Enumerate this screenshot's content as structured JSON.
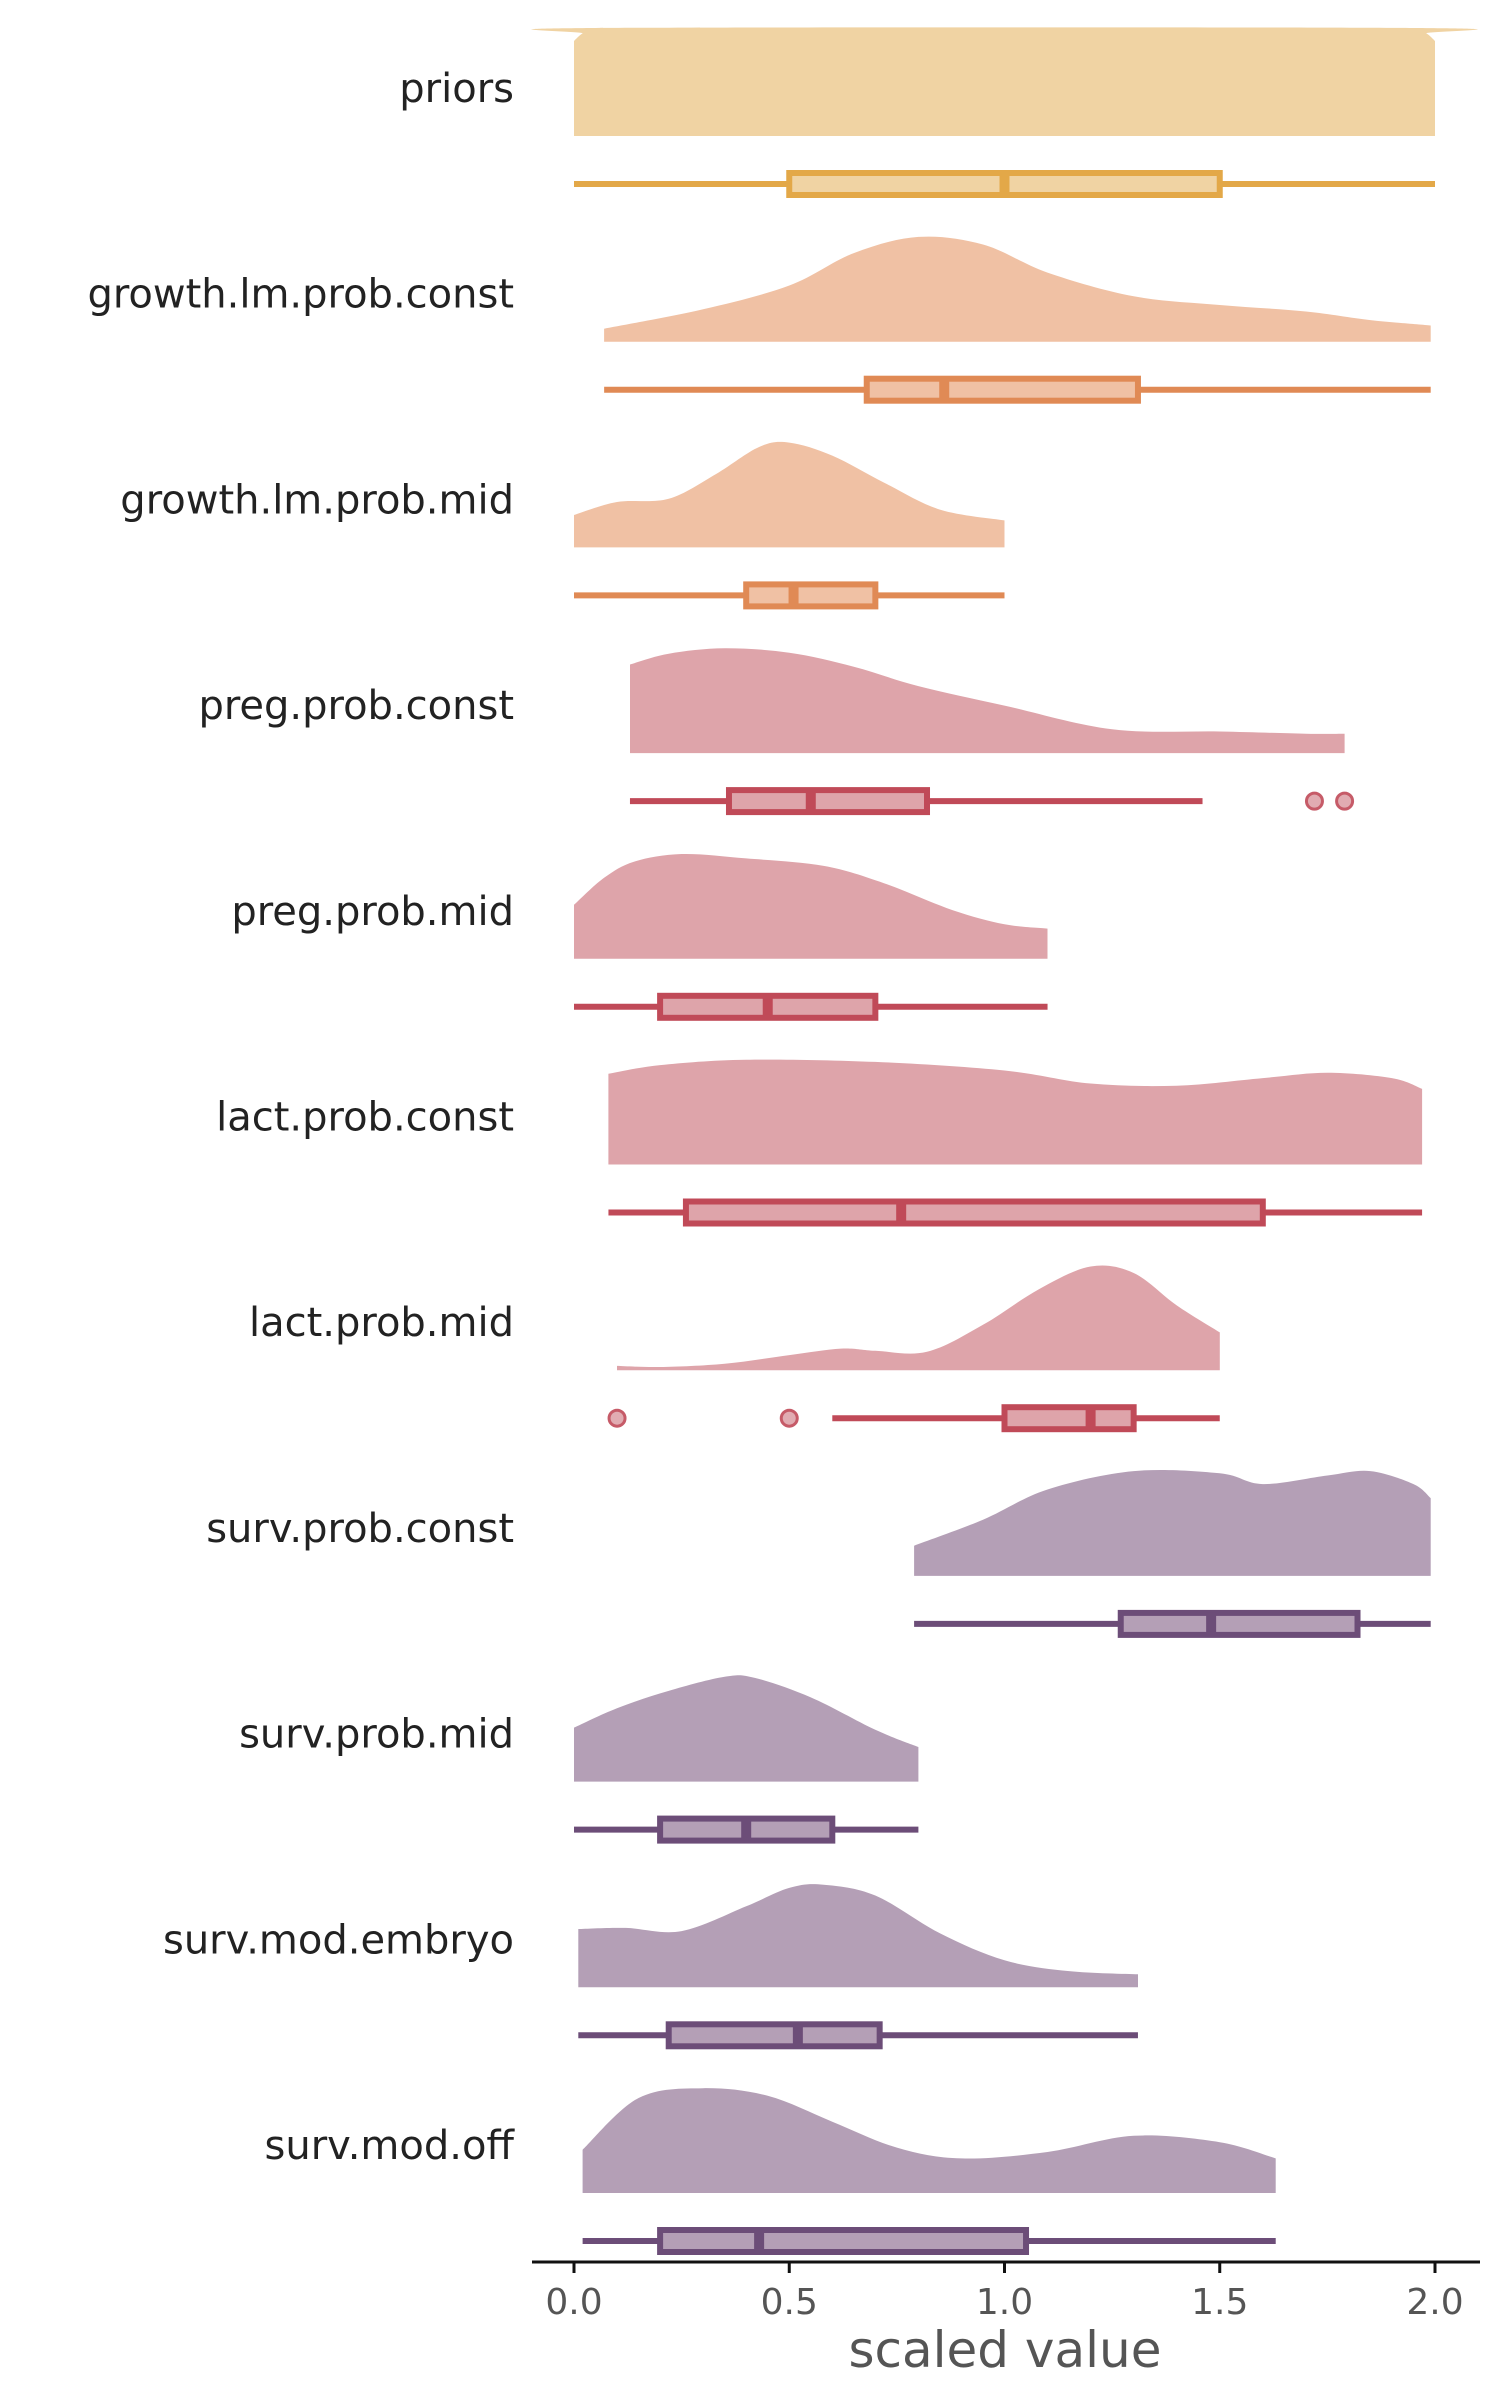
{
  "chart_data": {
    "type": "raincloud",
    "title": "",
    "xlabel": "scaled value",
    "xlim": [
      -0.1,
      2.1
    ],
    "xticks": [
      0.0,
      0.5,
      1.0,
      1.5,
      2.0
    ],
    "xtick_labels": [
      "0.0",
      "0.5",
      "1.0",
      "1.5",
      "2.0"
    ],
    "grid": false,
    "legend": "none",
    "series": [
      {
        "name": "priors",
        "group": "prior",
        "fill": "#F0D3A3",
        "line": "#E3A848",
        "box": {
          "min": 0.0,
          "q1": 0.5,
          "median": 1.0,
          "q3": 1.5,
          "max": 2.0
        },
        "outliers": [],
        "density": [
          [
            0.0,
            0.88
          ],
          [
            0.02,
            0.95
          ],
          [
            0.05,
            1.0
          ],
          [
            1.95,
            1.0
          ],
          [
            1.98,
            0.95
          ],
          [
            2.0,
            0.88
          ]
        ]
      },
      {
        "name": "growth.lm.prob.const",
        "group": "growth",
        "fill": "#F0C1A4",
        "line": "#E08A55",
        "box": {
          "min": 0.07,
          "q1": 0.68,
          "median": 0.86,
          "q3": 1.31,
          "max": 1.99
        },
        "outliers": [],
        "density": [
          [
            0.07,
            0.12
          ],
          [
            0.3,
            0.3
          ],
          [
            0.5,
            0.52
          ],
          [
            0.65,
            0.82
          ],
          [
            0.8,
            0.97
          ],
          [
            0.95,
            0.9
          ],
          [
            1.1,
            0.64
          ],
          [
            1.3,
            0.42
          ],
          [
            1.5,
            0.34
          ],
          [
            1.7,
            0.28
          ],
          [
            1.85,
            0.2
          ],
          [
            1.99,
            0.15
          ]
        ]
      },
      {
        "name": "growth.lm.prob.mid",
        "group": "growth",
        "fill": "#F0C1A4",
        "line": "#E08A55",
        "box": {
          "min": 0.0,
          "q1": 0.4,
          "median": 0.51,
          "q3": 0.7,
          "max": 1.0
        },
        "outliers": [],
        "density": [
          [
            0.0,
            0.3
          ],
          [
            0.1,
            0.42
          ],
          [
            0.22,
            0.45
          ],
          [
            0.33,
            0.68
          ],
          [
            0.43,
            0.93
          ],
          [
            0.5,
            0.97
          ],
          [
            0.6,
            0.85
          ],
          [
            0.72,
            0.6
          ],
          [
            0.85,
            0.35
          ],
          [
            1.0,
            0.25
          ]
        ]
      },
      {
        "name": "preg.prob.const",
        "group": "reproduction",
        "fill": "#DEA4AA",
        "line": "#C04A58",
        "box": {
          "min": 0.13,
          "q1": 0.36,
          "median": 0.55,
          "q3": 0.82,
          "max": 1.46
        },
        "outliers": [
          1.72,
          1.79
        ],
        "density": [
          [
            0.13,
            0.82
          ],
          [
            0.22,
            0.92
          ],
          [
            0.35,
            0.97
          ],
          [
            0.5,
            0.93
          ],
          [
            0.65,
            0.8
          ],
          [
            0.8,
            0.62
          ],
          [
            1.0,
            0.44
          ],
          [
            1.25,
            0.22
          ],
          [
            1.5,
            0.2
          ],
          [
            1.7,
            0.18
          ],
          [
            1.79,
            0.18
          ]
        ]
      },
      {
        "name": "preg.prob.mid",
        "group": "reproduction",
        "fill": "#DEA4AA",
        "line": "#C04A58",
        "box": {
          "min": 0.0,
          "q1": 0.2,
          "median": 0.45,
          "q3": 0.7,
          "max": 1.1
        },
        "outliers": [],
        "density": [
          [
            0.0,
            0.5
          ],
          [
            0.07,
            0.75
          ],
          [
            0.14,
            0.9
          ],
          [
            0.25,
            0.97
          ],
          [
            0.4,
            0.93
          ],
          [
            0.58,
            0.86
          ],
          [
            0.72,
            0.7
          ],
          [
            0.88,
            0.45
          ],
          [
            1.0,
            0.32
          ],
          [
            1.1,
            0.28
          ]
        ]
      },
      {
        "name": "lact.prob.const",
        "group": "reproduction",
        "fill": "#DEA4AA",
        "line": "#C04A58",
        "box": {
          "min": 0.08,
          "q1": 0.26,
          "median": 0.76,
          "q3": 1.6,
          "max": 1.97
        },
        "outliers": [],
        "density": [
          [
            0.08,
            0.84
          ],
          [
            0.2,
            0.92
          ],
          [
            0.4,
            0.97
          ],
          [
            0.7,
            0.95
          ],
          [
            1.0,
            0.87
          ],
          [
            1.2,
            0.75
          ],
          [
            1.4,
            0.73
          ],
          [
            1.6,
            0.8
          ],
          [
            1.75,
            0.85
          ],
          [
            1.9,
            0.8
          ],
          [
            1.97,
            0.7
          ]
        ]
      },
      {
        "name": "lact.prob.mid",
        "group": "reproduction",
        "fill": "#DEA4AA",
        "line": "#C04A58",
        "box": {
          "min": 0.6,
          "q1": 1.0,
          "median": 1.2,
          "q3": 1.3,
          "max": 1.5
        },
        "outliers": [
          0.1,
          0.5
        ],
        "density": [
          [
            0.1,
            0.04
          ],
          [
            0.2,
            0.03
          ],
          [
            0.35,
            0.06
          ],
          [
            0.5,
            0.14
          ],
          [
            0.62,
            0.2
          ],
          [
            0.7,
            0.18
          ],
          [
            0.82,
            0.17
          ],
          [
            0.95,
            0.42
          ],
          [
            1.08,
            0.75
          ],
          [
            1.2,
            0.96
          ],
          [
            1.3,
            0.9
          ],
          [
            1.4,
            0.6
          ],
          [
            1.5,
            0.35
          ]
        ]
      },
      {
        "name": "surv.prob.const",
        "group": "survival",
        "fill": "#B49FB6",
        "line": "#6C4D78",
        "box": {
          "min": 0.79,
          "q1": 1.27,
          "median": 1.48,
          "q3": 1.82,
          "max": 1.99
        },
        "outliers": [],
        "density": [
          [
            0.79,
            0.28
          ],
          [
            0.95,
            0.52
          ],
          [
            1.1,
            0.8
          ],
          [
            1.3,
            0.97
          ],
          [
            1.5,
            0.95
          ],
          [
            1.6,
            0.85
          ],
          [
            1.75,
            0.93
          ],
          [
            1.85,
            0.97
          ],
          [
            1.95,
            0.85
          ],
          [
            1.99,
            0.72
          ]
        ]
      },
      {
        "name": "surv.prob.mid",
        "group": "survival",
        "fill": "#B49FB6",
        "line": "#6C4D78",
        "box": {
          "min": 0.0,
          "q1": 0.2,
          "median": 0.4,
          "q3": 0.6,
          "max": 0.8
        },
        "outliers": [],
        "density": [
          [
            0.0,
            0.5
          ],
          [
            0.1,
            0.68
          ],
          [
            0.22,
            0.84
          ],
          [
            0.35,
            0.97
          ],
          [
            0.42,
            0.96
          ],
          [
            0.55,
            0.78
          ],
          [
            0.7,
            0.48
          ],
          [
            0.8,
            0.32
          ]
        ]
      },
      {
        "name": "surv.mod.embryo",
        "group": "survival",
        "fill": "#B49FB6",
        "line": "#6C4D78",
        "box": {
          "min": 0.01,
          "q1": 0.22,
          "median": 0.52,
          "q3": 0.71,
          "max": 1.31
        },
        "outliers": [],
        "density": [
          [
            0.01,
            0.54
          ],
          [
            0.12,
            0.55
          ],
          [
            0.25,
            0.52
          ],
          [
            0.4,
            0.75
          ],
          [
            0.5,
            0.92
          ],
          [
            0.58,
            0.95
          ],
          [
            0.7,
            0.85
          ],
          [
            0.85,
            0.5
          ],
          [
            1.0,
            0.25
          ],
          [
            1.15,
            0.15
          ],
          [
            1.31,
            0.12
          ]
        ]
      },
      {
        "name": "surv.mod.off",
        "group": "survival",
        "fill": "#B49FB6",
        "line": "#6C4D78",
        "box": {
          "min": 0.02,
          "q1": 0.2,
          "median": 0.43,
          "q3": 1.05,
          "max": 1.63
        },
        "outliers": [],
        "density": [
          [
            0.02,
            0.4
          ],
          [
            0.15,
            0.88
          ],
          [
            0.3,
            0.97
          ],
          [
            0.45,
            0.9
          ],
          [
            0.6,
            0.66
          ],
          [
            0.75,
            0.42
          ],
          [
            0.9,
            0.32
          ],
          [
            1.1,
            0.38
          ],
          [
            1.3,
            0.53
          ],
          [
            1.5,
            0.47
          ],
          [
            1.63,
            0.32
          ]
        ]
      }
    ]
  }
}
